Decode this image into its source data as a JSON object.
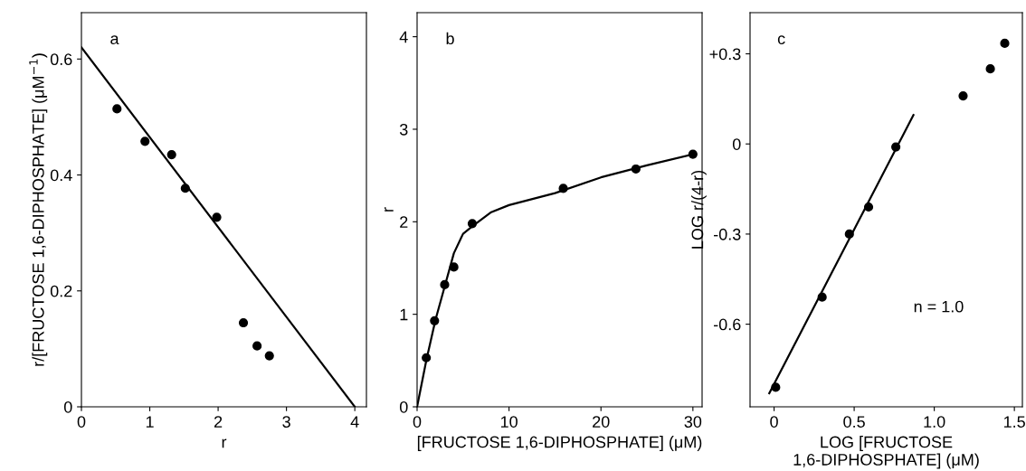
{
  "chart_data": [
    {
      "type": "scatter",
      "xlabel": "r",
      "ylabel": "r/[FRUCTOSE 1,6-DIPHOSPHATE] (μM$^{−1}$)",
      "annotations": [
        "a"
      ],
      "xlim": [
        0,
        4.17
      ],
      "ylim": [
        0,
        0.68
      ],
      "xticks": [
        0,
        1,
        2,
        3,
        4
      ],
      "yticks": [
        0,
        0.2,
        0.4,
        0.6
      ],
      "marker": "circle",
      "grid": false,
      "series": [
        {
          "color": "#000000",
          "x": [
            0.52,
            0.93,
            1.32,
            1.52,
            1.98,
            2.37,
            2.57,
            2.75
          ],
          "values": [
            0.514,
            0.458,
            0.435,
            0.377,
            0.327,
            0.145,
            0.105,
            0.088
          ]
        },
        {
          "type": "line",
          "marker": "none",
          "color": "#000000",
          "x": [
            0,
            4
          ],
          "values": [
            0.62,
            0
          ]
        }
      ]
    },
    {
      "type": "scatter",
      "xlabel": "[FRUCTOSE 1,6-DIPHOSPHATE] (μM)",
      "ylabel": "r",
      "annotations": [
        "b"
      ],
      "xlim": [
        0,
        31
      ],
      "ylim": [
        0,
        4.26
      ],
      "xticks": [
        0,
        10,
        20,
        30
      ],
      "yticks": [
        0,
        1,
        2,
        3,
        4
      ],
      "marker": "circle",
      "grid": false,
      "series": [
        {
          "color": "#000000",
          "x": [
            1.0,
            1.9,
            3.0,
            4.0,
            6.0,
            15.9,
            23.8,
            30
          ],
          "values": [
            0.53,
            0.93,
            1.32,
            1.51,
            1.98,
            2.36,
            2.57,
            2.73
          ]
        },
        {
          "type": "line",
          "marker": "none",
          "color": "#000000",
          "x": [
            0,
            1,
            2,
            3,
            4,
            5,
            6,
            8,
            10,
            15,
            20,
            25,
            30
          ],
          "values": [
            0,
            0.5,
            0.94,
            1.3,
            1.66,
            1.87,
            1.95,
            2.1,
            2.18,
            2.31,
            2.48,
            2.61,
            2.73
          ]
        }
      ]
    },
    {
      "type": "scatter",
      "xlabel": "LOG [FRUCTOSE 1,6-DIPHOSPHATE] (μM)",
      "ylabel": "LOG r/(4-r)",
      "annotations": [
        "c",
        "n = 1.0"
      ],
      "xlim": [
        -0.15,
        1.55
      ],
      "ylim": [
        -0.875,
        0.437
      ],
      "xticks": [
        0,
        0.5,
        {
          "value": 1.0,
          "label": "1.0"
        },
        1.5
      ],
      "yticks": [
        {
          "value": 0.3,
          "label": "+0.3"
        },
        0,
        {
          "value": -0.3,
          "label": "-0.3"
        },
        {
          "value": -0.6,
          "label": "-0.6"
        }
      ],
      "marker": "circle",
      "grid": false,
      "series": [
        {
          "color": "#000000",
          "x": [
            0.01,
            0.3,
            0.47,
            0.59,
            0.76,
            1.18,
            1.35,
            1.44
          ],
          "values": [
            -0.81,
            -0.51,
            -0.3,
            -0.21,
            -0.01,
            0.16,
            0.25,
            0.335
          ]
        },
        {
          "type": "line",
          "marker": "none",
          "color": "#000000",
          "x": [
            -0.03,
            0.87
          ],
          "values": [
            -0.83,
            0.096
          ]
        }
      ]
    }
  ]
}
